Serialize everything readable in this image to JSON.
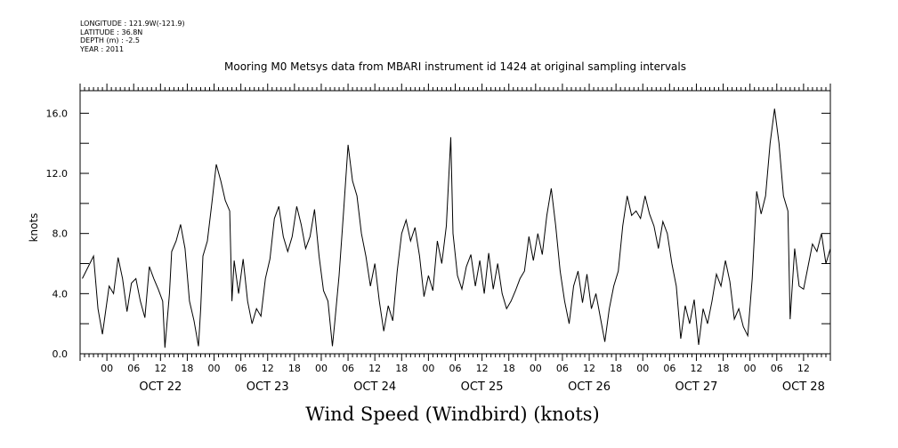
{
  "header": {
    "lines": [
      "LONGITUDE : 121.9W(-121.9)",
      "LATITUDE : 36.8N",
      "DEPTH (m) : -2.5",
      "YEAR : 2011"
    ],
    "title": "Mooring M0 Metsys data from MBARI instrument id 1424 at original sampling intervals"
  },
  "footer": {
    "title": "Wind Speed (Windbird) (knots)"
  },
  "chart_data": {
    "type": "line",
    "title": "Mooring M0 Metsys data from MBARI instrument id 1424 at original sampling intervals",
    "xlabel": "",
    "ylabel": "knots",
    "ylim": [
      0,
      17.5
    ],
    "yticks": [
      0.0,
      4.0,
      8.0,
      12.0,
      16.0
    ],
    "ytick_labels": [
      "0.0",
      "4.0",
      "8.0",
      "12.0",
      "16.0"
    ],
    "xlim_hours": [
      -6,
      162
    ],
    "hour_tick_labels": [
      "00",
      "06",
      "12",
      "18"
    ],
    "day_labels": [
      "OCT 22",
      "OCT 23",
      "OCT 24",
      "OCT 25",
      "OCT 26",
      "OCT 27",
      "OCT 28"
    ],
    "bottom_title": "Wind Speed (Windbird) (knots)",
    "grid": false,
    "series": [
      {
        "x_unit": "hours since OCT 22 00:00",
        "points": [
          [
            -5.5,
            5.0
          ],
          [
            -3.0,
            6.5
          ],
          [
            -2.0,
            3.0
          ],
          [
            -1.0,
            1.3
          ],
          [
            0.5,
            4.5
          ],
          [
            1.5,
            4.0
          ],
          [
            2.5,
            6.4
          ],
          [
            3.5,
            5.0
          ],
          [
            4.5,
            2.8
          ],
          [
            5.5,
            4.7
          ],
          [
            6.5,
            5.0
          ],
          [
            7.5,
            3.5
          ],
          [
            8.5,
            2.4
          ],
          [
            9.5,
            5.8
          ],
          [
            10.5,
            5.0
          ],
          [
            11.5,
            4.3
          ],
          [
            12.5,
            3.5
          ],
          [
            13.0,
            0.4
          ],
          [
            14.0,
            4.0
          ],
          [
            14.5,
            6.8
          ],
          [
            15.5,
            7.5
          ],
          [
            16.5,
            8.6
          ],
          [
            17.5,
            7.0
          ],
          [
            18.5,
            3.5
          ],
          [
            19.5,
            2.2
          ],
          [
            20.5,
            0.5
          ],
          [
            21.0,
            3.0
          ],
          [
            21.5,
            6.5
          ],
          [
            22.5,
            7.5
          ],
          [
            23.5,
            10.0
          ],
          [
            24.5,
            12.6
          ],
          [
            25.5,
            11.5
          ],
          [
            26.5,
            10.2
          ],
          [
            27.5,
            9.5
          ],
          [
            28.0,
            3.5
          ],
          [
            28.5,
            6.2
          ],
          [
            29.5,
            4.0
          ],
          [
            30.5,
            6.3
          ],
          [
            31.5,
            3.5
          ],
          [
            32.5,
            2.0
          ],
          [
            33.5,
            3.0
          ],
          [
            34.5,
            2.5
          ],
          [
            35.5,
            5.0
          ],
          [
            36.5,
            6.3
          ],
          [
            37.5,
            9.0
          ],
          [
            38.5,
            9.8
          ],
          [
            39.5,
            7.8
          ],
          [
            40.5,
            6.8
          ],
          [
            41.5,
            7.8
          ],
          [
            42.5,
            9.8
          ],
          [
            43.5,
            8.6
          ],
          [
            44.5,
            7.0
          ],
          [
            45.5,
            7.8
          ],
          [
            46.5,
            9.6
          ],
          [
            47.5,
            6.5
          ],
          [
            48.5,
            4.2
          ],
          [
            49.5,
            3.5
          ],
          [
            50.5,
            0.5
          ],
          [
            51.0,
            2.0
          ],
          [
            52.0,
            5.2
          ],
          [
            53.0,
            9.5
          ],
          [
            54.0,
            13.9
          ],
          [
            55.0,
            11.5
          ],
          [
            56.0,
            10.5
          ],
          [
            57.0,
            8.0
          ],
          [
            58.0,
            6.5
          ],
          [
            59.0,
            4.5
          ],
          [
            60.0,
            6.0
          ],
          [
            61.0,
            3.5
          ],
          [
            62.0,
            1.5
          ],
          [
            63.0,
            3.2
          ],
          [
            64.0,
            2.2
          ],
          [
            65.0,
            5.5
          ],
          [
            66.0,
            8.0
          ],
          [
            67.0,
            8.9
          ],
          [
            68.0,
            7.5
          ],
          [
            69.0,
            8.4
          ],
          [
            70.0,
            6.5
          ],
          [
            71.0,
            3.8
          ],
          [
            72.0,
            5.2
          ],
          [
            73.0,
            4.2
          ],
          [
            74.0,
            7.5
          ],
          [
            75.0,
            6.0
          ],
          [
            76.0,
            8.5
          ],
          [
            77.0,
            14.4
          ],
          [
            77.5,
            8.0
          ],
          [
            78.5,
            5.2
          ],
          [
            79.5,
            4.3
          ],
          [
            80.5,
            5.8
          ],
          [
            81.5,
            6.6
          ],
          [
            82.5,
            4.5
          ],
          [
            83.5,
            6.2
          ],
          [
            84.5,
            4.0
          ],
          [
            85.5,
            6.7
          ],
          [
            86.5,
            4.3
          ],
          [
            87.5,
            6.0
          ],
          [
            88.5,
            4.0
          ],
          [
            89.5,
            3.0
          ],
          [
            90.5,
            3.5
          ],
          [
            91.5,
            4.2
          ],
          [
            92.5,
            5.0
          ],
          [
            93.5,
            5.5
          ],
          [
            94.5,
            7.8
          ],
          [
            95.5,
            6.2
          ],
          [
            96.5,
            8.0
          ],
          [
            97.5,
            6.6
          ],
          [
            98.5,
            9.2
          ],
          [
            99.5,
            11.0
          ],
          [
            100.5,
            8.5
          ],
          [
            101.5,
            5.5
          ],
          [
            102.5,
            3.5
          ],
          [
            103.5,
            2.0
          ],
          [
            104.5,
            4.5
          ],
          [
            105.5,
            5.5
          ],
          [
            106.5,
            3.4
          ],
          [
            107.5,
            5.3
          ],
          [
            108.5,
            3.0
          ],
          [
            109.5,
            4.0
          ],
          [
            110.5,
            2.4
          ],
          [
            111.5,
            0.8
          ],
          [
            112.5,
            3.0
          ],
          [
            113.5,
            4.5
          ],
          [
            114.5,
            5.5
          ],
          [
            115.5,
            8.5
          ],
          [
            116.5,
            10.5
          ],
          [
            117.5,
            9.2
          ],
          [
            118.5,
            9.5
          ],
          [
            119.5,
            9.0
          ],
          [
            120.5,
            10.5
          ],
          [
            121.5,
            9.3
          ],
          [
            122.5,
            8.5
          ],
          [
            123.5,
            7.0
          ],
          [
            124.5,
            8.8
          ],
          [
            125.5,
            8.0
          ],
          [
            126.5,
            6.0
          ],
          [
            127.5,
            4.5
          ],
          [
            128.5,
            1.0
          ],
          [
            129.5,
            3.2
          ],
          [
            130.5,
            2.0
          ],
          [
            131.5,
            3.6
          ],
          [
            132.5,
            0.6
          ],
          [
            133.5,
            3.0
          ],
          [
            134.5,
            2.0
          ],
          [
            135.5,
            3.5
          ],
          [
            136.5,
            5.3
          ],
          [
            137.5,
            4.5
          ],
          [
            138.5,
            6.2
          ],
          [
            139.5,
            4.8
          ],
          [
            140.5,
            2.3
          ],
          [
            141.5,
            3.0
          ],
          [
            142.5,
            1.8
          ],
          [
            143.5,
            1.2
          ],
          [
            144.5,
            5.0
          ],
          [
            145.5,
            10.8
          ],
          [
            146.5,
            9.3
          ],
          [
            147.5,
            10.5
          ],
          [
            148.5,
            14.0
          ],
          [
            149.5,
            16.3
          ],
          [
            150.5,
            14.0
          ],
          [
            151.5,
            10.5
          ],
          [
            152.5,
            9.5
          ],
          [
            153.0,
            2.3
          ],
          [
            154.0,
            7.0
          ],
          [
            155.0,
            4.5
          ],
          [
            156.0,
            4.3
          ],
          [
            157.0,
            5.8
          ],
          [
            158.0,
            7.3
          ],
          [
            159.0,
            6.8
          ],
          [
            160.0,
            8.0
          ],
          [
            161.0,
            6.0
          ],
          [
            162.0,
            7.0
          ]
        ]
      }
    ]
  }
}
